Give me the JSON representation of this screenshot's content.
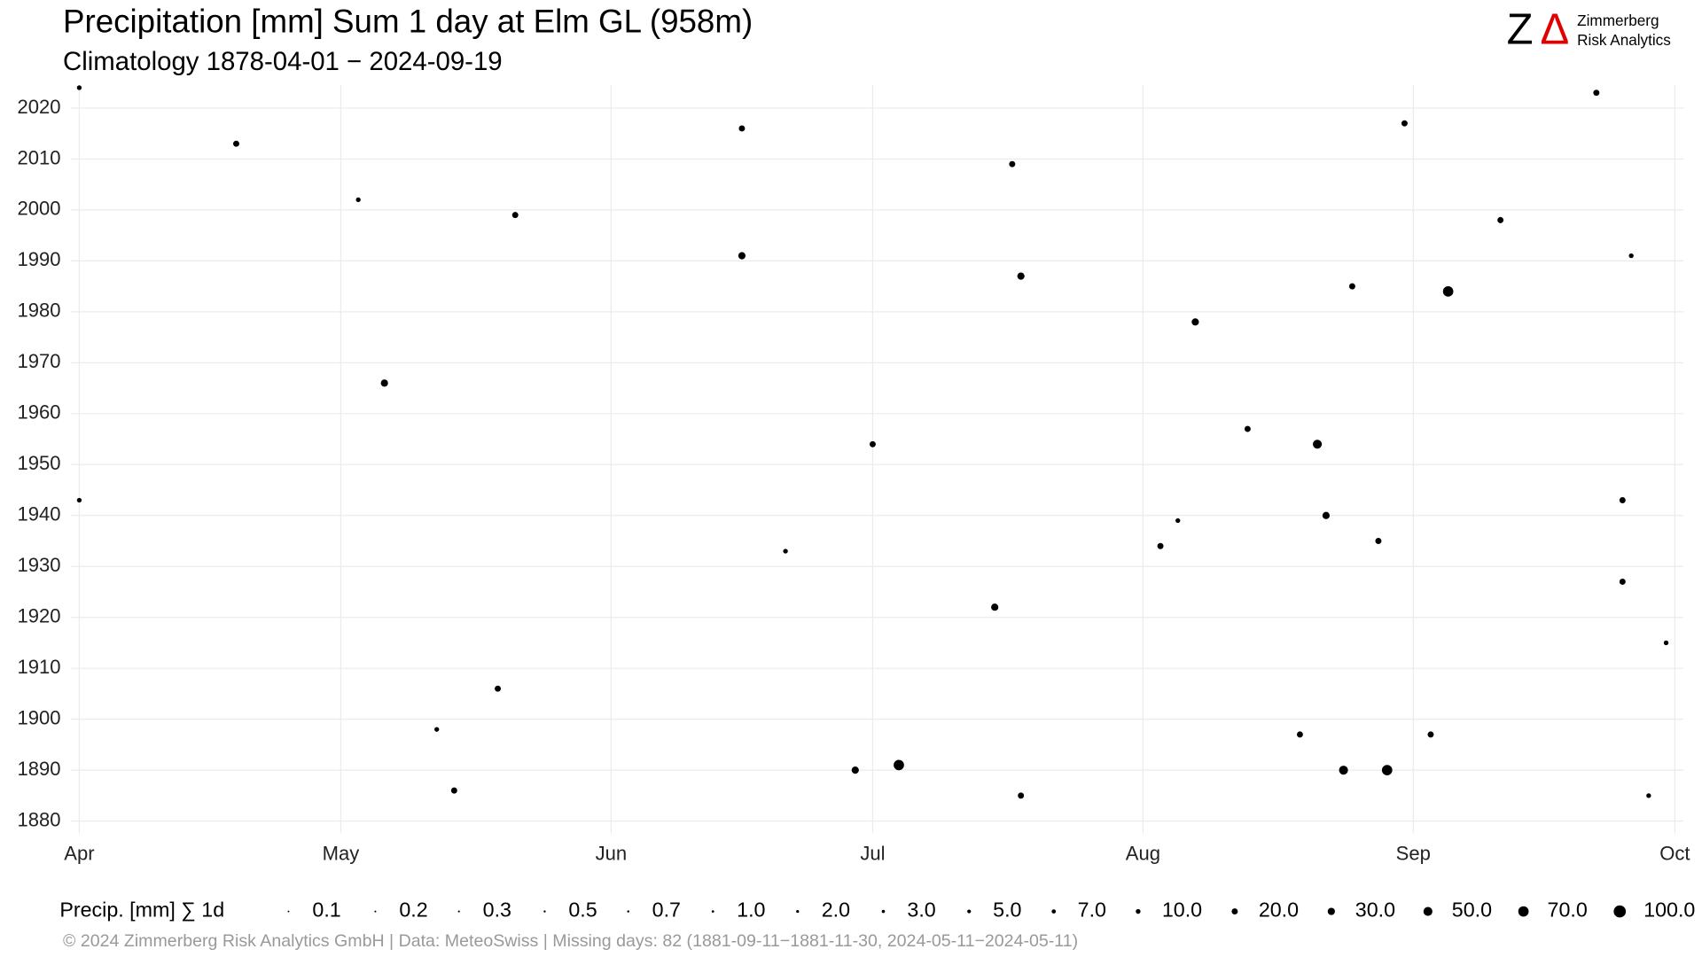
{
  "chart_data": {
    "type": "scatter",
    "title": "Precipitation [mm] Sum 1 day at Elm  GL (958m)",
    "subtitle": "Climatology 1878-04-01 − 2024-09-19",
    "caption": "©  2024 Zimmerberg Risk Analytics GmbH | Data: MeteoSwiss | Missing days: 82 (1881-09-11−1881-11-30, 2024-05-11−2024-05-11)",
    "color": "#000000",
    "grid": true,
    "xlim": [
      -1,
      184
    ],
    "ylim": [
      1877.6,
      2024.6
    ],
    "xticks": [
      {
        "value": 0,
        "label": "Apr"
      },
      {
        "value": 30,
        "label": "May"
      },
      {
        "value": 61,
        "label": "Jun"
      },
      {
        "value": 91,
        "label": "Jul"
      },
      {
        "value": 122,
        "label": "Aug"
      },
      {
        "value": 153,
        "label": "Sep"
      },
      {
        "value": 183,
        "label": "Oct"
      }
    ],
    "yticks": [
      1880,
      1890,
      1900,
      1910,
      1920,
      1930,
      1940,
      1950,
      1960,
      1970,
      1980,
      1990,
      2000,
      2010,
      2020
    ],
    "x": [
      94,
      150,
      145,
      89,
      157,
      142,
      143,
      108,
      105,
      128,
      146,
      177,
      177,
      76,
      50,
      35,
      18,
      76,
      107,
      163,
      152,
      174,
      124,
      149,
      91,
      43,
      41,
      140,
      155,
      32,
      134,
      48,
      108,
      180,
      182,
      81,
      126,
      0,
      0,
      178
    ],
    "y": [
      1891,
      1890,
      1890,
      1890,
      1984,
      1954,
      1940,
      1987,
      1922,
      1978,
      1985,
      1943,
      1927,
      1991,
      1999,
      1966,
      2013,
      2016,
      2009,
      1998,
      2017,
      2023,
      1934,
      1935,
      1954,
      1886,
      1898,
      1897,
      1897,
      2002,
      1957,
      1906,
      1885,
      1885,
      1915,
      1933,
      1939,
      2024,
      1943,
      1991
    ],
    "sizes": [
      70,
      70,
      50,
      30,
      70,
      50,
      30,
      30,
      30,
      30,
      20,
      20,
      20,
      30,
      20,
      30,
      20,
      20,
      20,
      20,
      20,
      20,
      20,
      20,
      20,
      20,
      10,
      20,
      20,
      10,
      20,
      20,
      20,
      10,
      10,
      10,
      10,
      10,
      10,
      10
    ],
    "size_legend": {
      "title": "Precip. [mm] ∑ 1d",
      "values": [
        0.1,
        0.2,
        0.3,
        0.5,
        0.7,
        {
          "value": 1,
          "label": "1.0"
        },
        {
          "value": 2,
          "label": "2.0"
        },
        {
          "value": 3,
          "label": "3.0"
        },
        {
          "value": 5,
          "label": "5.0"
        },
        {
          "value": 7,
          "label": "7.0"
        },
        {
          "value": 10,
          "label": "10.0"
        },
        {
          "value": 20,
          "label": "20.0"
        },
        {
          "value": 30,
          "label": "30.0"
        },
        {
          "value": 50,
          "label": "50.0"
        },
        {
          "value": 70,
          "label": "70.0"
        },
        {
          "value": 100,
          "label": "100.0"
        }
      ]
    }
  },
  "logo": {
    "z": "Z",
    "delta": "Δ",
    "line1": "Zimmerberg",
    "line2": "Risk Analytics"
  }
}
